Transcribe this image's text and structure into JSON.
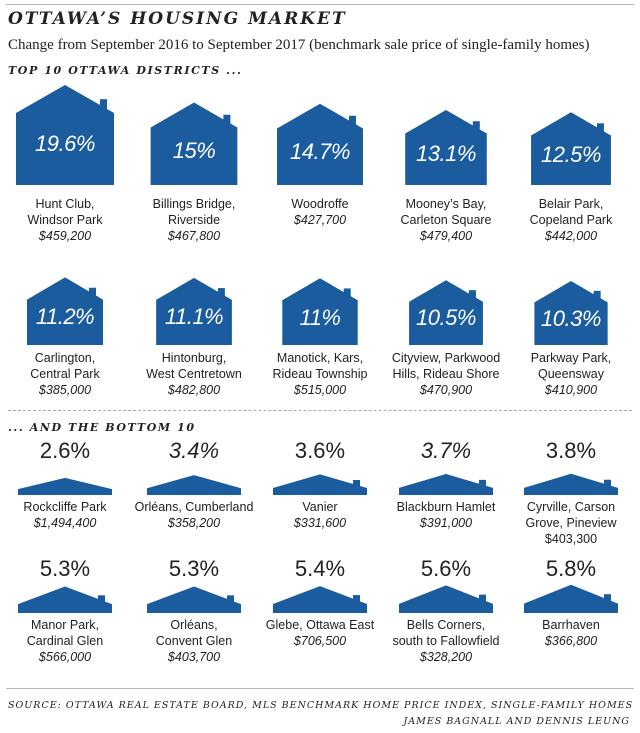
{
  "title": "OTTAWA’S HOUSING MARKET",
  "subtitle": "Change from September 2016 to September 2017 (benchmark sale price of single-family homes)",
  "top_heading": "TOP 10 OTTAWA DISTRICTS ...",
  "bottom_heading": "... AND THE BOTTOM 10",
  "source": "SOURCE: OTTAWA REAL ESTATE BOARD, MLS BENCHMARK HOME PRICE INDEX, SINGLE-FAMILY HOMES",
  "credit": "JAMES BAGNALL AND DENNIS LEUNG",
  "colors": {
    "house": "#1a5c9e",
    "text": "#222222"
  },
  "chart_data": [
    {
      "type": "bar",
      "group": "TOP 10 OTTAWA DISTRICTS ...",
      "categories": [
        "Hunt Club, Windsor Park",
        "Billings Bridge, Riverside",
        "Woodroffe",
        "Mooney’s Bay, Carleton Square",
        "Belair Park, Copeland Park",
        "Carlington, Central Park",
        "Hintonburg, West Centretown",
        "Manotick, Kars, Rideau Township",
        "Cityview, Parkwood Hills, Rideau Shore",
        "Parkway Park, Queensway"
      ],
      "values": [
        19.6,
        15,
        14.7,
        13.1,
        12.5,
        11.2,
        11.1,
        11,
        10.5,
        10.3
      ],
      "value_labels": [
        "19.6%",
        "15%",
        "14.7%",
        "13.1%",
        "12.5%",
        "11.2%",
        "11.1%",
        "11%",
        "10.5%",
        "10.3%"
      ],
      "name_lines": [
        [
          "Hunt Club,",
          "Windsor Park"
        ],
        [
          "Billings Bridge,",
          "Riverside"
        ],
        [
          "Woodroffe"
        ],
        [
          "Mooney’s Bay,",
          "Carleton Square"
        ],
        [
          "Belair Park,",
          "Copeland Park"
        ],
        [
          "Carlington,",
          "Central Park"
        ],
        [
          "Hintonburg,",
          "West Centretown"
        ],
        [
          "Manotick, Kars,",
          "Rideau Township"
        ],
        [
          "Cityview, Parkwood",
          "Hills, Rideau Shore"
        ],
        [
          "Parkway Park,",
          "Queensway"
        ]
      ],
      "prices": [
        "$459,200",
        "$467,800",
        "$427,700",
        "$479,400",
        "$442,000",
        "$385,000",
        "$482,800",
        "$515,000",
        "$470,900",
        "$410,900"
      ]
    },
    {
      "type": "bar",
      "group": "... AND THE BOTTOM 10",
      "categories": [
        "Rockcliffe Park",
        "Orléans, Cumberland",
        "Vanier",
        "Blackburn Hamlet",
        "Cyrville, Carson Grove, Pineview",
        "Manor Park, Cardinal Glen",
        "Orléans, Convent Glen",
        "Glebe, Ottawa East",
        "Bells Corners, south to Fallowfield",
        "Barrhaven"
      ],
      "values": [
        2.6,
        3.4,
        3.6,
        3.7,
        3.8,
        5.3,
        5.3,
        5.4,
        5.6,
        5.8
      ],
      "value_labels": [
        "2.6%",
        "3.4%",
        "3.6%",
        "3.7%",
        "3.8%",
        "5.3%",
        "5.3%",
        "5.4%",
        "5.6%",
        "5.8%"
      ],
      "name_lines": [
        [
          "Rockcliffe Park"
        ],
        [
          "Orléans, Cumberland"
        ],
        [
          "Vanier"
        ],
        [
          "Blackburn Hamlet"
        ],
        [
          "Cyrville, Carson",
          "Grove, Pineview"
        ],
        [
          "Manor Park,",
          "Cardinal Glen"
        ],
        [
          "Orléans,",
          "Convent Glen"
        ],
        [
          "Glebe, Ottawa East"
        ],
        [
          "Bells Corners,",
          "south to Fallowfield"
        ],
        [
          "Barrhaven"
        ]
      ],
      "prices": [
        "$1,494,400",
        "$358,200",
        "$331,600",
        "$391,000",
        "$403,300",
        "$566,000",
        "$403,700",
        "$706,500",
        "$328,200",
        "$366,800"
      ]
    }
  ]
}
